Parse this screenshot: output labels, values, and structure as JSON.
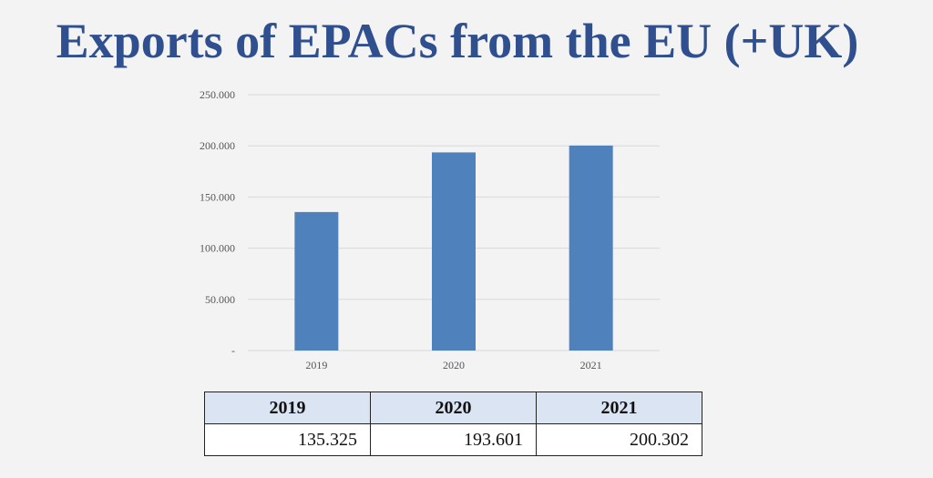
{
  "title": "Exports of EPACs from the EU (+UK)",
  "colors": {
    "title": "#2f4f8f",
    "bar": "#4f81bd",
    "gridline": "#d9d9d9",
    "table_header_bg": "#dbe4f3"
  },
  "chart_data": {
    "type": "bar",
    "categories": [
      "2019",
      "2020",
      "2021"
    ],
    "values": [
      135325,
      193601,
      200302
    ],
    "ylim": [
      0,
      250000
    ],
    "yticks": [
      0,
      50000,
      100000,
      150000,
      200000,
      250000
    ],
    "ytick_labels": [
      "-",
      "50.000",
      "100.000",
      "150.000",
      "200.000",
      "250.000"
    ],
    "grid": true,
    "legend": "none"
  },
  "table": {
    "headers": [
      "2019",
      "2020",
      "2021"
    ],
    "values": [
      "135.325",
      "193.601",
      "200.302"
    ]
  }
}
